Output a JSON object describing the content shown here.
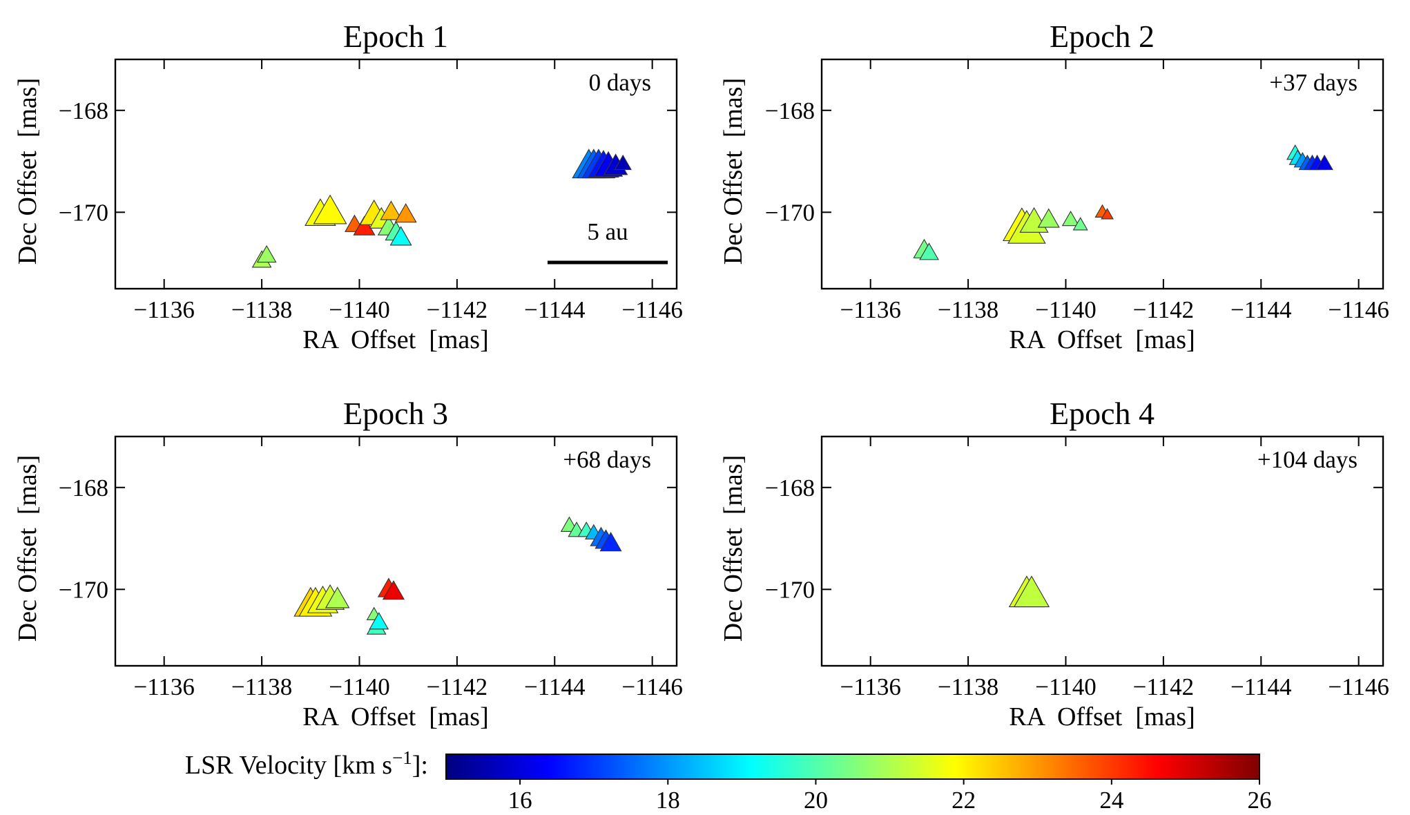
{
  "chart_data": [
    {
      "type": "scatter",
      "title": "Epoch 1",
      "annotation": "0 days",
      "scalebar_label": "5 au",
      "scalebar_ra": [
        -1144.0,
        -1146.3
      ],
      "scalebar_dec": -171.0,
      "xlabel": "RA  Offset  [mas]",
      "ylabel": "Dec Offset  [mas]",
      "xlim": [
        -1135,
        -1146.5
      ],
      "ylim": [
        -171.5,
        -167
      ],
      "xticks": [
        -1136,
        -1138,
        -1140,
        -1142,
        -1144,
        -1146
      ],
      "yticks": [
        -168,
        -170
      ],
      "points": [
        {
          "ra": -1138.0,
          "dec": -170.95,
          "v": 21.0,
          "s": 0.8
        },
        {
          "ra": -1138.1,
          "dec": -170.85,
          "v": 20.8,
          "s": 0.8
        },
        {
          "ra": -1139.2,
          "dec": -170.05,
          "v": 21.8,
          "s": 1.3
        },
        {
          "ra": -1139.4,
          "dec": -170.0,
          "v": 21.9,
          "s": 1.4
        },
        {
          "ra": -1139.9,
          "dec": -170.25,
          "v": 23.6,
          "s": 0.8
        },
        {
          "ra": -1140.1,
          "dec": -170.3,
          "v": 24.3,
          "s": 0.9
        },
        {
          "ra": -1140.3,
          "dec": -170.05,
          "v": 22.1,
          "s": 1.2
        },
        {
          "ra": -1140.45,
          "dec": -170.15,
          "v": 21.6,
          "s": 1.0
        },
        {
          "ra": -1140.6,
          "dec": -170.3,
          "v": 20.6,
          "s": 0.9
        },
        {
          "ra": -1140.75,
          "dec": -170.4,
          "v": 20.0,
          "s": 0.9
        },
        {
          "ra": -1140.85,
          "dec": -170.5,
          "v": 19.2,
          "s": 0.9
        },
        {
          "ra": -1140.65,
          "dec": -170.0,
          "v": 22.6,
          "s": 0.9
        },
        {
          "ra": -1140.95,
          "dec": -170.05,
          "v": 23.0,
          "s": 0.9
        },
        {
          "ra": -1144.7,
          "dec": -169.1,
          "v": 17.8,
          "s": 1.4
        },
        {
          "ra": -1144.8,
          "dec": -169.1,
          "v": 17.4,
          "s": 1.4
        },
        {
          "ra": -1144.9,
          "dec": -169.1,
          "v": 17.0,
          "s": 1.4
        },
        {
          "ra": -1145.0,
          "dec": -169.1,
          "v": 16.6,
          "s": 1.3
        },
        {
          "ra": -1145.1,
          "dec": -169.1,
          "v": 16.2,
          "s": 1.2
        },
        {
          "ra": -1145.25,
          "dec": -169.1,
          "v": 15.9,
          "s": 1.0
        },
        {
          "ra": -1145.4,
          "dec": -169.05,
          "v": 15.6,
          "s": 0.7
        }
      ]
    },
    {
      "type": "scatter",
      "title": "Epoch 2",
      "annotation": "+37 days",
      "xlabel": "RA  Offset  [mas]",
      "ylabel": "Dec Offset  [mas]",
      "xlim": [
        -1135,
        -1146.5
      ],
      "ylim": [
        -171.5,
        -167
      ],
      "xticks": [
        -1136,
        -1138,
        -1140,
        -1142,
        -1144,
        -1146
      ],
      "yticks": [
        -168,
        -170
      ],
      "points": [
        {
          "ra": -1137.1,
          "dec": -170.75,
          "v": 20.4,
          "s": 0.9
        },
        {
          "ra": -1137.2,
          "dec": -170.8,
          "v": 20.0,
          "s": 0.8
        },
        {
          "ra": -1139.1,
          "dec": -170.3,
          "v": 21.8,
          "s": 1.6
        },
        {
          "ra": -1139.2,
          "dec": -170.35,
          "v": 21.5,
          "s": 1.6
        },
        {
          "ra": -1139.35,
          "dec": -170.2,
          "v": 21.2,
          "s": 1.2
        },
        {
          "ra": -1139.65,
          "dec": -170.15,
          "v": 20.8,
          "s": 0.9
        },
        {
          "ra": -1140.1,
          "dec": -170.15,
          "v": 20.6,
          "s": 0.7
        },
        {
          "ra": -1140.3,
          "dec": -170.25,
          "v": 20.3,
          "s": 0.6
        },
        {
          "ra": -1140.75,
          "dec": -170.0,
          "v": 23.6,
          "s": 0.6
        },
        {
          "ra": -1140.85,
          "dec": -170.05,
          "v": 24.0,
          "s": 0.5
        },
        {
          "ra": -1144.7,
          "dec": -168.85,
          "v": 19.5,
          "s": 0.7
        },
        {
          "ra": -1144.75,
          "dec": -168.95,
          "v": 18.8,
          "s": 0.7
        },
        {
          "ra": -1144.85,
          "dec": -169.0,
          "v": 18.0,
          "s": 0.7
        },
        {
          "ra": -1144.95,
          "dec": -169.05,
          "v": 17.4,
          "s": 0.7
        },
        {
          "ra": -1145.05,
          "dec": -169.05,
          "v": 16.9,
          "s": 0.7
        },
        {
          "ra": -1145.15,
          "dec": -169.05,
          "v": 16.5,
          "s": 0.7
        },
        {
          "ra": -1145.3,
          "dec": -169.05,
          "v": 16.1,
          "s": 0.7
        }
      ]
    },
    {
      "type": "scatter",
      "title": "Epoch 3",
      "annotation": "+68 days",
      "xlabel": "RA  Offset  [mas]",
      "ylabel": "Dec Offset  [mas]",
      "xlim": [
        -1135,
        -1146.5
      ],
      "ylim": [
        -171.5,
        -167
      ],
      "xticks": [
        -1136,
        -1138,
        -1140,
        -1142,
        -1144,
        -1146
      ],
      "yticks": [
        -168,
        -170
      ],
      "points": [
        {
          "ra": -1139.0,
          "dec": -170.3,
          "v": 22.3,
          "s": 1.4
        },
        {
          "ra": -1139.1,
          "dec": -170.3,
          "v": 22.0,
          "s": 1.4
        },
        {
          "ra": -1139.25,
          "dec": -170.25,
          "v": 21.7,
          "s": 1.3
        },
        {
          "ra": -1139.4,
          "dec": -170.2,
          "v": 21.4,
          "s": 1.2
        },
        {
          "ra": -1139.55,
          "dec": -170.2,
          "v": 21.0,
          "s": 1.0
        },
        {
          "ra": -1140.3,
          "dec": -170.5,
          "v": 20.6,
          "s": 0.6
        },
        {
          "ra": -1140.35,
          "dec": -170.75,
          "v": 19.8,
          "s": 0.8
        },
        {
          "ra": -1140.4,
          "dec": -170.65,
          "v": 19.2,
          "s": 0.8
        },
        {
          "ra": -1140.6,
          "dec": -170.0,
          "v": 24.3,
          "s": 0.9
        },
        {
          "ra": -1140.7,
          "dec": -170.05,
          "v": 24.8,
          "s": 0.9
        },
        {
          "ra": -1144.3,
          "dec": -168.75,
          "v": 20.5,
          "s": 0.7
        },
        {
          "ra": -1144.45,
          "dec": -168.85,
          "v": 20.2,
          "s": 0.7
        },
        {
          "ra": -1144.65,
          "dec": -168.85,
          "v": 19.8,
          "s": 0.7
        },
        {
          "ra": -1144.8,
          "dec": -168.9,
          "v": 18.4,
          "s": 0.7
        },
        {
          "ra": -1144.95,
          "dec": -169.0,
          "v": 17.6,
          "s": 0.9
        },
        {
          "ra": -1145.05,
          "dec": -169.05,
          "v": 17.2,
          "s": 0.9
        },
        {
          "ra": -1145.15,
          "dec": -169.1,
          "v": 16.8,
          "s": 0.9
        }
      ]
    },
    {
      "type": "scatter",
      "title": "Epoch 4",
      "annotation": "+104 days",
      "xlabel": "RA  Offset  [mas]",
      "ylabel": "Dec Offset  [mas]",
      "xlim": [
        -1135,
        -1146.5
      ],
      "ylim": [
        -171.5,
        -167
      ],
      "xticks": [
        -1136,
        -1138,
        -1140,
        -1142,
        -1144,
        -1146
      ],
      "yticks": [
        -168,
        -170
      ],
      "points": [
        {
          "ra": -1139.2,
          "dec": -170.1,
          "v": 21.5,
          "s": 1.5
        },
        {
          "ra": -1139.3,
          "dec": -170.1,
          "v": 21.2,
          "s": 1.5
        }
      ]
    }
  ],
  "colorbar": {
    "label": "LSR Velocity [km s",
    "label_sup": "−1",
    "label_end": "]:",
    "vmin": 15,
    "vmax": 26,
    "ticks": [
      "16",
      "18",
      "20",
      "22",
      "24",
      "26"
    ],
    "colormap": [
      "#00007f",
      "#0000ff",
      "#007fff",
      "#00ffff",
      "#7fff7f",
      "#ffff00",
      "#ff7f00",
      "#ff0000",
      "#7f0000"
    ]
  }
}
